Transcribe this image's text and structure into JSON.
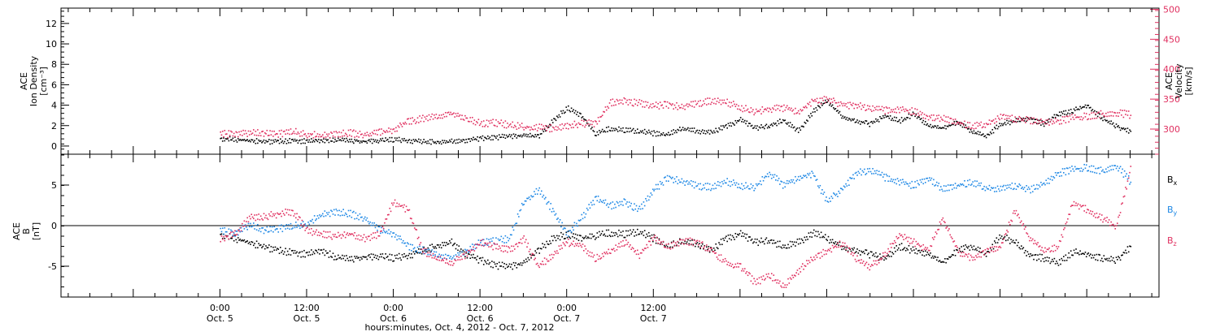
{
  "colors": {
    "black": "#000000",
    "pink": "#e03060",
    "blue": "#1e88e5"
  },
  "chart_data": [
    {
      "type": "scatter",
      "panel": "top",
      "left_axis": {
        "label_lines": [
          "ACE",
          "Ion Density",
          "[cm⁻³]"
        ],
        "ylim": [
          -0.8,
          13.5
        ],
        "ticks": [
          0,
          2,
          4,
          6,
          8,
          10,
          12
        ]
      },
      "right_axis": {
        "label_lines": [
          "ACE",
          "Velocity",
          "[km/s]"
        ],
        "ylim": [
          258,
          502
        ],
        "ticks": [
          300,
          350,
          400,
          450,
          500
        ]
      },
      "series": [
        {
          "axis": "left",
          "color": "#000000",
          "x": [
            0,
            2,
            4,
            6,
            8,
            10,
            12,
            14,
            16,
            18,
            20,
            22,
            24,
            26,
            28,
            30,
            32,
            34,
            36,
            38,
            40,
            42,
            44,
            46,
            48,
            50,
            52,
            54,
            56,
            58,
            60,
            62,
            64,
            66,
            68,
            70,
            72,
            74,
            76,
            78,
            80,
            82,
            84,
            86,
            88,
            90,
            92,
            94,
            96,
            98,
            100,
            102,
            104,
            106,
            108,
            110,
            112,
            114,
            116,
            118,
            120,
            122,
            124,
            126
          ],
          "y": [
            0.8,
            0.7,
            0.6,
            0.5,
            0.5,
            0.6,
            0.5,
            0.6,
            0.7,
            0.6,
            0.5,
            0.6,
            0.7,
            0.6,
            0.5,
            0.4,
            0.5,
            0.6,
            0.8,
            0.9,
            1.0,
            1.1,
            1.0,
            2.5,
            3.8,
            3.0,
            1.2,
            1.8,
            1.6,
            1.5,
            1.3,
            1.2,
            1.8,
            1.5,
            1.4,
            2.0,
            2.6,
            1.8,
            2.0,
            2.6,
            1.5,
            3.4,
            4.5,
            3.0,
            2.5,
            2.2,
            3.0,
            2.5,
            3.2,
            2.0,
            1.8,
            2.4,
            1.5,
            1.0,
            2.2,
            2.5,
            2.8,
            2.2,
            3.2,
            3.5,
            4.0,
            2.8,
            2.0,
            1.5
          ]
        },
        {
          "axis": "right",
          "color": "#e03060",
          "x": [
            0,
            2,
            4,
            6,
            8,
            10,
            12,
            14,
            16,
            18,
            20,
            22,
            24,
            26,
            28,
            30,
            32,
            34,
            36,
            38,
            40,
            42,
            44,
            46,
            48,
            50,
            52,
            54,
            56,
            58,
            60,
            62,
            64,
            66,
            68,
            70,
            72,
            74,
            76,
            78,
            80,
            82,
            84,
            86,
            88,
            90,
            92,
            94,
            96,
            98,
            100,
            102,
            104,
            106,
            108,
            110,
            112,
            114,
            116,
            118,
            120,
            122,
            124,
            126
          ],
          "y": [
            293,
            292,
            295,
            294,
            293,
            297,
            292,
            291,
            293,
            294,
            292,
            295,
            299,
            314,
            318,
            322,
            326,
            320,
            310,
            312,
            308,
            304,
            304,
            302,
            306,
            310,
            311,
            345,
            348,
            344,
            340,
            342,
            338,
            344,
            348,
            346,
            337,
            330,
            334,
            336,
            330,
            348,
            350,
            342,
            340,
            337,
            332,
            334,
            330,
            322,
            318,
            312,
            307,
            310,
            320,
            318,
            316,
            312,
            314,
            320,
            322,
            326,
            328,
            325
          ]
        }
      ]
    },
    {
      "type": "scatter",
      "panel": "bottom",
      "left_axis": {
        "label_lines": [
          "ACE",
          "B",
          "[nT]"
        ],
        "ylim": [
          -8.8,
          8.8
        ],
        "ticks": [
          -5,
          0,
          5
        ],
        "zero_line": true
      },
      "legend": {
        "placement": "right",
        "entries": [
          "Bx",
          "By",
          "Bz"
        ]
      },
      "series": [
        {
          "name": "Bx",
          "color": "#000000",
          "x": [
            0,
            2,
            4,
            6,
            8,
            10,
            12,
            14,
            16,
            18,
            20,
            22,
            24,
            26,
            28,
            30,
            32,
            34,
            36,
            38,
            40,
            42,
            44,
            46,
            48,
            50,
            52,
            54,
            56,
            58,
            60,
            62,
            64,
            66,
            68,
            70,
            72,
            74,
            76,
            78,
            80,
            82,
            84,
            86,
            88,
            90,
            92,
            94,
            96,
            98,
            100,
            102,
            104,
            106,
            108,
            110,
            112,
            114,
            116,
            118,
            120,
            122,
            124,
            126
          ],
          "y": [
            -1.0,
            -1.5,
            -2.0,
            -2.5,
            -3.0,
            -3.2,
            -3.5,
            -3.0,
            -3.8,
            -4.0,
            -3.8,
            -3.7,
            -3.9,
            -3.6,
            -3.0,
            -2.5,
            -2.0,
            -3.5,
            -4.2,
            -4.8,
            -5.0,
            -4.5,
            -3.0,
            -1.5,
            -1.0,
            -1.5,
            -1.2,
            -0.8,
            -1.0,
            -0.7,
            -1.5,
            -2.5,
            -1.8,
            -2.2,
            -3.0,
            -1.5,
            -1.0,
            -2.0,
            -1.8,
            -2.5,
            -2.0,
            -0.8,
            -1.5,
            -2.5,
            -3.0,
            -3.5,
            -4.0,
            -2.5,
            -3.0,
            -3.5,
            -4.5,
            -3.0,
            -2.5,
            -3.5,
            -1.2,
            -2.0,
            -3.5,
            -4.0,
            -4.5,
            -3.2,
            -3.5,
            -4.0,
            -4.2,
            -2.5
          ]
        },
        {
          "name": "By",
          "color": "#1e88e5",
          "x": [
            0,
            2,
            4,
            6,
            8,
            10,
            12,
            14,
            16,
            18,
            20,
            22,
            24,
            26,
            28,
            30,
            32,
            34,
            36,
            38,
            40,
            42,
            44,
            46,
            48,
            50,
            52,
            54,
            56,
            58,
            60,
            62,
            64,
            66,
            68,
            70,
            72,
            74,
            76,
            78,
            80,
            82,
            84,
            86,
            88,
            90,
            92,
            94,
            96,
            98,
            100,
            102,
            104,
            106,
            108,
            110,
            112,
            114,
            116,
            118,
            120,
            122,
            124,
            126
          ],
          "y": [
            -0.5,
            -1.0,
            0.2,
            -0.5,
            -0.3,
            0.0,
            0.3,
            1.5,
            1.8,
            1.5,
            1.0,
            -0.5,
            -1.0,
            -2.5,
            -3.0,
            -3.5,
            -4.0,
            -3.0,
            -2.0,
            -1.8,
            -1.5,
            3.0,
            4.5,
            2.0,
            -1.0,
            1.0,
            3.5,
            2.5,
            3.0,
            2.0,
            4.5,
            6.0,
            5.5,
            5.0,
            4.8,
            5.5,
            5.0,
            4.8,
            6.5,
            5.0,
            6.0,
            6.5,
            3.0,
            4.5,
            6.5,
            7.0,
            6.0,
            5.5,
            5.0,
            6.0,
            4.5,
            5.0,
            5.5,
            4.8,
            4.5,
            5.0,
            4.5,
            5.2,
            6.5,
            7.0,
            7.2,
            6.8,
            7.5,
            5.5
          ]
        },
        {
          "name": "Bz",
          "color": "#e03060",
          "x": [
            0,
            2,
            4,
            6,
            8,
            10,
            12,
            14,
            16,
            18,
            20,
            22,
            24,
            26,
            28,
            30,
            32,
            34,
            36,
            38,
            40,
            42,
            44,
            46,
            48,
            50,
            52,
            54,
            56,
            58,
            60,
            62,
            64,
            66,
            68,
            70,
            72,
            74,
            76,
            78,
            80,
            82,
            84,
            86,
            88,
            90,
            92,
            94,
            96,
            98,
            100,
            102,
            104,
            106,
            108,
            110,
            112,
            114,
            116,
            118,
            120,
            122,
            124,
            126
          ],
          "y": [
            -1.5,
            -1.0,
            1.0,
            1.2,
            1.5,
            1.8,
            -0.5,
            -1.0,
            -1.2,
            -1.0,
            -1.5,
            -1.0,
            3.0,
            2.0,
            -3.0,
            -4.0,
            -4.5,
            -3.5,
            -2.0,
            -2.5,
            -3.0,
            -1.5,
            -5.0,
            -3.5,
            -2.0,
            -2.5,
            -4.0,
            -3.0,
            -2.0,
            -3.5,
            -1.5,
            -2.5,
            -1.8,
            -2.0,
            -3.0,
            -4.5,
            -5.0,
            -7.0,
            -6.0,
            -7.5,
            -5.5,
            -4.0,
            -3.0,
            -2.0,
            -4.0,
            -5.0,
            -3.5,
            -1.0,
            -2.0,
            -3.0,
            1.0,
            -3.0,
            -4.0,
            -3.0,
            -2.5,
            2.0,
            -1.5,
            -3.0,
            -2.5,
            3.0,
            2.0,
            1.0,
            0.0,
            7.0
          ]
        }
      ]
    }
  ],
  "x_axis": {
    "range_hours": [
      -22,
      130
    ],
    "major_ticks": [
      {
        "hour": 0,
        "time": "0:00",
        "date": "Oct. 5"
      },
      {
        "hour": 12,
        "time": "12:00",
        "date": "Oct. 5"
      },
      {
        "hour": 24,
        "time": "0:00",
        "date": "Oct. 6"
      },
      {
        "hour": 36,
        "time": "12:00",
        "date": "Oct. 6"
      },
      {
        "hour": 48,
        "time": "0:00",
        "date": "Oct. 7"
      },
      {
        "hour": 60,
        "time": "12:00",
        "date": "Oct. 7"
      }
    ],
    "title": "hours:minutes, Oct.  4, 2012 - Oct.  7, 2012"
  },
  "legend_labels": {
    "bx": "B",
    "bx_sub": "x",
    "by": "B",
    "by_sub": "y",
    "bz": "B",
    "bz_sub": "z"
  }
}
